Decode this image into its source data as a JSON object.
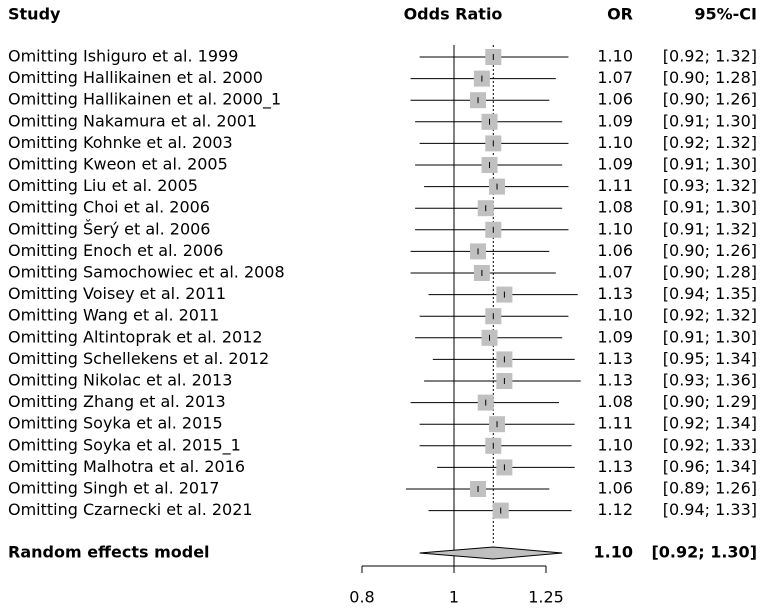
{
  "chart_data": {
    "type": "forest",
    "headers": {
      "study": "Study",
      "axis": "Odds Ratio",
      "estimate": "OR",
      "ci": "95%-CI"
    },
    "categories": [
      "Omitting Ishiguro et al. 1999",
      "Omitting Hallikainen et al. 2000",
      "Omitting Hallikainen et al. 2000_1",
      "Omitting Nakamura et al. 2001",
      "Omitting Kohnke et al. 2003",
      "Omitting Kweon et al. 2005",
      "Omitting Liu et al. 2005",
      "Omitting Choi et al. 2006",
      "Omitting Šerý et al. 2006",
      "Omitting Enoch et al. 2006",
      "Omitting Samochowiec et al. 2008",
      "Omitting Voisey et al. 2011",
      "Omitting Wang et al. 2011",
      "Omitting Altintoprak et al. 2012",
      "Omitting Schellekens et al. 2012",
      "Omitting Nikolac et al. 2013",
      "Omitting Zhang et al. 2013",
      "Omitting Soyka et al. 2015",
      "Omitting Soyka et al. 2015_1",
      "Omitting Malhotra et al. 2016",
      "Omitting Singh et al. 2017",
      "Omitting Czarnecki et al. 2021"
    ],
    "values": [
      1.1,
      1.07,
      1.06,
      1.09,
      1.1,
      1.09,
      1.11,
      1.08,
      1.1,
      1.06,
      1.07,
      1.13,
      1.1,
      1.09,
      1.13,
      1.13,
      1.08,
      1.11,
      1.1,
      1.13,
      1.06,
      1.12
    ],
    "value_labels": [
      "1.10",
      "1.07",
      "1.06",
      "1.09",
      "1.10",
      "1.09",
      "1.11",
      "1.08",
      "1.10",
      "1.06",
      "1.07",
      "1.13",
      "1.10",
      "1.09",
      "1.13",
      "1.13",
      "1.08",
      "1.11",
      "1.10",
      "1.13",
      "1.06",
      "1.12"
    ],
    "lower": [
      0.92,
      0.9,
      0.9,
      0.91,
      0.92,
      0.91,
      0.93,
      0.91,
      0.91,
      0.9,
      0.9,
      0.94,
      0.92,
      0.91,
      0.95,
      0.93,
      0.9,
      0.92,
      0.92,
      0.96,
      0.89,
      0.94
    ],
    "upper": [
      1.32,
      1.28,
      1.26,
      1.3,
      1.32,
      1.3,
      1.32,
      1.3,
      1.32,
      1.26,
      1.28,
      1.35,
      1.32,
      1.3,
      1.34,
      1.36,
      1.29,
      1.34,
      1.33,
      1.34,
      1.26,
      1.33
    ],
    "ci_labels": [
      "[0.92; 1.32]",
      "[0.90; 1.28]",
      "[0.90; 1.26]",
      "[0.91; 1.30]",
      "[0.92; 1.32]",
      "[0.91; 1.30]",
      "[0.93; 1.32]",
      "[0.91; 1.30]",
      "[0.91; 1.32]",
      "[0.90; 1.26]",
      "[0.90; 1.28]",
      "[0.94; 1.35]",
      "[0.92; 1.32]",
      "[0.91; 1.30]",
      "[0.95; 1.34]",
      "[0.93; 1.36]",
      "[0.90; 1.29]",
      "[0.92; 1.34]",
      "[0.92; 1.33]",
      "[0.96; 1.34]",
      "[0.89; 1.26]",
      "[0.94; 1.33]"
    ],
    "summary": {
      "label": "Random effects model",
      "value": 1.1,
      "value_label": "1.10",
      "lower": 0.92,
      "upper": 1.3,
      "ci_label": "[0.92; 1.30]"
    },
    "color": "#c0c0c0",
    "log_x": true,
    "reference": 1,
    "xlim": [
      0.8,
      1.25
    ],
    "xticks": [
      0.8,
      1,
      1.25
    ]
  }
}
